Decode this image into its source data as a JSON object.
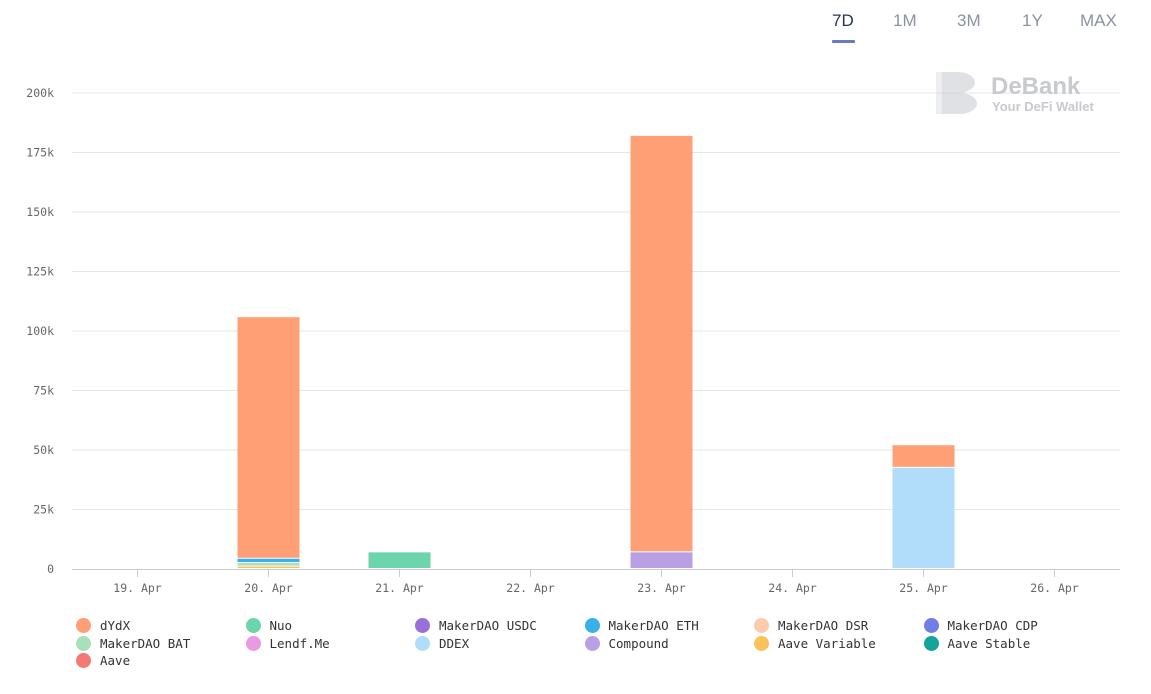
{
  "range_tabs": [
    {
      "label": "7D",
      "active": true
    },
    {
      "label": "1M",
      "active": false
    },
    {
      "label": "3M",
      "active": false
    },
    {
      "label": "1Y",
      "active": false
    },
    {
      "label": "MAX",
      "active": false
    }
  ],
  "watermark": {
    "brand": "DeBank",
    "tagline": "Your DeFi Wallet"
  },
  "chart_data": {
    "type": "bar",
    "stacked": true,
    "categories": [
      "19. Apr",
      "20. Apr",
      "21. Apr",
      "22. Apr",
      "23. Apr",
      "24. Apr",
      "25. Apr",
      "26. Apr"
    ],
    "y_ticks": [
      "0",
      "25k",
      "50k",
      "75k",
      "100k",
      "125k",
      "150k",
      "175k",
      "200k"
    ],
    "ylim": [
      0,
      200000
    ],
    "grid": true,
    "legend_position": "bottom",
    "series": [
      {
        "name": "dYdX",
        "color": "#ff9f75",
        "values": [
          0,
          101500,
          0,
          0,
          175000,
          0,
          9500,
          0
        ]
      },
      {
        "name": "Nuo",
        "color": "#6dd5ac",
        "values": [
          0,
          0,
          7000,
          0,
          0,
          0,
          0,
          0
        ]
      },
      {
        "name": "MakerDAO USDC",
        "color": "#9b6fd9",
        "values": [
          0,
          0,
          0,
          0,
          0,
          0,
          0,
          0
        ]
      },
      {
        "name": "MakerDAO ETH",
        "color": "#3ab0e8",
        "values": [
          0,
          1800,
          0,
          0,
          0,
          0,
          0,
          0
        ]
      },
      {
        "name": "MakerDAO DSR",
        "color": "#fccbab",
        "values": [
          0,
          0,
          0,
          0,
          0,
          0,
          0,
          0
        ]
      },
      {
        "name": "MakerDAO CDP",
        "color": "#6f7fe6",
        "values": [
          0,
          0,
          0,
          0,
          0,
          0,
          0,
          0
        ]
      },
      {
        "name": "MakerDAO BAT",
        "color": "#a9dfb9",
        "values": [
          0,
          1500,
          0,
          0,
          0,
          0,
          0,
          0
        ]
      },
      {
        "name": "Lendf.Me",
        "color": "#e69be3",
        "values": [
          0,
          0,
          0,
          0,
          0,
          0,
          0,
          0
        ]
      },
      {
        "name": "DDEX",
        "color": "#b1ddfb",
        "values": [
          0,
          0,
          0,
          0,
          0,
          0,
          42500,
          0
        ]
      },
      {
        "name": "Compound",
        "color": "#b9a0e4",
        "values": [
          0,
          0,
          0,
          0,
          7000,
          0,
          0,
          0
        ]
      },
      {
        "name": "Aave Variable",
        "color": "#fbc25a",
        "values": [
          0,
          1000,
          0,
          0,
          0,
          0,
          0,
          0
        ]
      },
      {
        "name": "Aave Stable",
        "color": "#13a59a",
        "values": [
          0,
          0,
          0,
          0,
          0,
          0,
          0,
          0
        ]
      },
      {
        "name": "Aave",
        "color": "#f27a72",
        "values": [
          0,
          0,
          0,
          0,
          0,
          0,
          0,
          0
        ]
      }
    ]
  }
}
